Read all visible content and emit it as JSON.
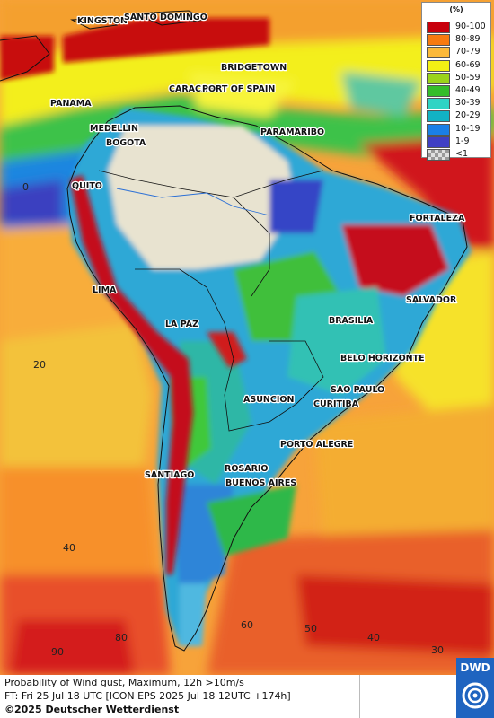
{
  "legend": {
    "unit": "(%)",
    "items": [
      {
        "label": "90-100",
        "color": "#c8000c"
      },
      {
        "label": "80-89",
        "color": "#f77a10"
      },
      {
        "label": "70-79",
        "color": "#fbb93a"
      },
      {
        "label": "60-69",
        "color": "#f3f014"
      },
      {
        "label": "50-59",
        "color": "#9bd41a"
      },
      {
        "label": "40-49",
        "color": "#34bd2a"
      },
      {
        "label": "30-39",
        "color": "#2fd4c4"
      },
      {
        "label": "20-29",
        "color": "#12b2c4"
      },
      {
        "label": "10-19",
        "color": "#1a7fe6"
      },
      {
        "label": "1-9",
        "color": "#3f3fc4"
      },
      {
        "label": "<1",
        "color": "#bdbdbd"
      }
    ]
  },
  "cities": {
    "kingston": "KINGSTON",
    "santo_domingo": "SANTO DOMINGO",
    "bridgetown": "BRIDGETOWN",
    "caracas": "CARACAS",
    "port_of_spain": "PORT OF SPAIN",
    "panama": "PANAMA",
    "medellin": "MEDELLIN",
    "bogota": "BOGOTA",
    "paramaribo": "PARAMARIBO",
    "quito": "QUITO",
    "fortaleza": "FORTALEZA",
    "lima": "LIMA",
    "salvador": "SALVADOR",
    "brasilia": "BRASILIA",
    "la_paz": "LA PAZ",
    "belo_horizonte": "BELO HORIZONTE",
    "sao_paulo": "SAO PAULO",
    "asuncion": "ASUNCION",
    "curitiba": "CURITIBA",
    "porto_alegre": "PORTO ALEGRE",
    "santiago": "SANTIAGO",
    "rosario": "ROSARIO",
    "buenos_aires": "BUENOS AIRES"
  },
  "graticule": {
    "lat_0": "0",
    "lat_20": "20",
    "lat_40": "40",
    "lon_80": "80",
    "lon_60": "60",
    "lon_50": "50",
    "lon_40": "40",
    "lon_30": "30",
    "lon_90": "90"
  },
  "footer": {
    "line1": "Probability of Wind gust, Maximum, 12h >10m/s",
    "line2": "FT: Fri 25 Jul 18 UTC [ICON EPS 2025 Jul 18 12UTC +174h]",
    "line3": "©2025 Deutscher Wetterdienst"
  },
  "logo": {
    "text": "DWD"
  }
}
